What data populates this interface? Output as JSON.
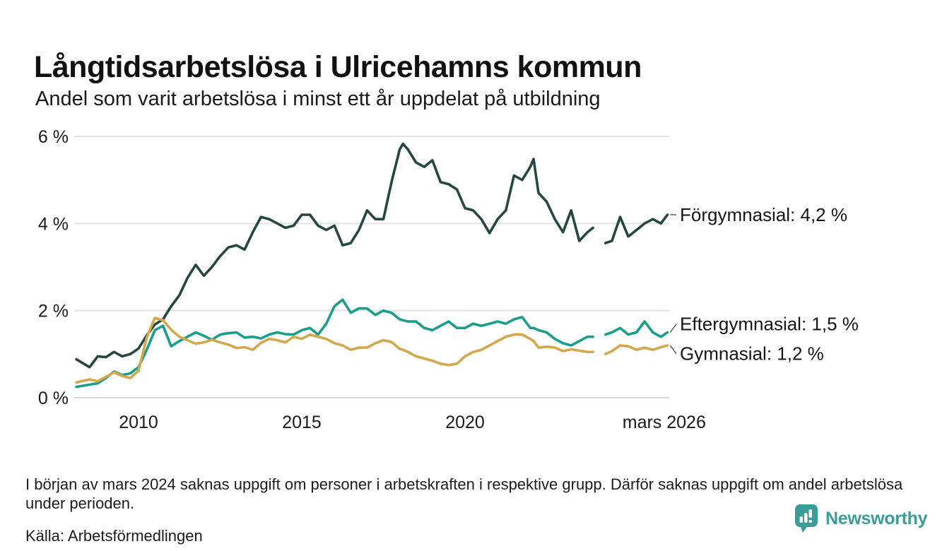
{
  "header": {
    "title": "Långtidsarbetslösa i Ulricehamns kommun",
    "subtitle": "Andel som varit arbetslösa i minst ett år uppdelat på utbildning"
  },
  "chart_data": {
    "type": "line",
    "title": "Långtidsarbetslösa i Ulricehamns kommun",
    "subtitle": "Andel som varit arbetslösa i minst ett år uppdelat på utbildning",
    "unit": "%",
    "xlim": [
      2008,
      2026.3
    ],
    "ylim": [
      0,
      6
    ],
    "grid": "horizontal",
    "legend_position": "labels-at-line-end",
    "gap_note": "Data saknas i början av 2024 (kring mars 2024), visas som avbrott i linjerna",
    "yticks": [
      {
        "value": 0,
        "label": "0 %"
      },
      {
        "value": 2,
        "label": "2 %"
      },
      {
        "value": 4,
        "label": "4 %"
      },
      {
        "value": 6,
        "label": "6 %"
      }
    ],
    "xticks": [
      {
        "value": 2010,
        "label": "2010"
      },
      {
        "value": 2015,
        "label": "2015"
      },
      {
        "value": 2020,
        "label": "2020"
      },
      {
        "value": 2026.1,
        "label": "mars 2026"
      }
    ],
    "x": [
      2008.1,
      2008.5,
      2008.75,
      2009,
      2009.25,
      2009.5,
      2009.75,
      2010,
      2010.25,
      2010.5,
      2010.75,
      2011,
      2011.25,
      2011.5,
      2011.75,
      2012,
      2012.25,
      2012.5,
      2012.75,
      2013,
      2013.25,
      2013.5,
      2013.75,
      2014,
      2014.25,
      2014.5,
      2014.75,
      2015,
      2015.25,
      2015.5,
      2015.75,
      2016,
      2016.25,
      2016.5,
      2016.75,
      2017,
      2017.25,
      2017.5,
      2017.75,
      2018,
      2018.1,
      2018.25,
      2018.5,
      2018.75,
      2019,
      2019.25,
      2019.5,
      2019.75,
      2020,
      2020.25,
      2020.5,
      2020.75,
      2021,
      2021.25,
      2021.5,
      2021.75,
      2022,
      2022.1,
      2022.25,
      2022.5,
      2022.75,
      2023,
      2023.25,
      2023.5,
      2023.75,
      2023.92,
      2024.1,
      2024.3,
      2024.5,
      2024.75,
      2025,
      2025.25,
      2025.5,
      2025.75,
      2026,
      2026.2
    ],
    "series": [
      {
        "name": "Förgymnasial",
        "label": "Förgymnasial: 4,2 %",
        "end_value": 4.2,
        "color": "#254741",
        "values": [
          0.88,
          0.7,
          0.95,
          0.93,
          1.05,
          0.95,
          1.0,
          1.13,
          1.43,
          1.68,
          1.8,
          2.1,
          2.35,
          2.75,
          3.05,
          2.8,
          3.0,
          3.25,
          3.45,
          3.5,
          3.4,
          3.8,
          4.15,
          4.1,
          4.0,
          3.9,
          3.95,
          4.2,
          4.2,
          3.95,
          3.85,
          3.95,
          3.5,
          3.55,
          3.85,
          4.3,
          4.1,
          4.1,
          4.95,
          5.7,
          5.83,
          5.7,
          5.4,
          5.3,
          5.45,
          4.95,
          4.9,
          4.78,
          4.35,
          4.3,
          4.1,
          3.78,
          4.1,
          4.3,
          5.1,
          5.0,
          5.3,
          5.48,
          4.7,
          4.5,
          4.1,
          3.8,
          4.3,
          3.6,
          3.8,
          3.9,
          null,
          3.55,
          3.6,
          4.15,
          3.7,
          3.85,
          4.0,
          4.1,
          4.0,
          4.2
        ]
      },
      {
        "name": "Eftergymnasial",
        "label": "Eftergymnasial: 1,5 %",
        "end_value": 1.5,
        "color": "#1a9e8b",
        "values": [
          0.25,
          0.3,
          0.33,
          0.45,
          0.6,
          0.52,
          0.56,
          0.7,
          1.1,
          1.55,
          1.65,
          1.18,
          1.3,
          1.4,
          1.5,
          1.42,
          1.33,
          1.45,
          1.48,
          1.5,
          1.38,
          1.4,
          1.36,
          1.45,
          1.5,
          1.46,
          1.45,
          1.55,
          1.6,
          1.45,
          1.7,
          2.1,
          2.25,
          1.95,
          2.05,
          2.05,
          1.9,
          2.0,
          1.95,
          1.8,
          1.78,
          1.75,
          1.75,
          1.6,
          1.55,
          1.65,
          1.75,
          1.6,
          1.6,
          1.7,
          1.65,
          1.7,
          1.75,
          1.7,
          1.8,
          1.85,
          1.6,
          1.6,
          1.55,
          1.5,
          1.35,
          1.25,
          1.2,
          1.3,
          1.4,
          1.4,
          null,
          1.45,
          1.5,
          1.6,
          1.45,
          1.5,
          1.75,
          1.5,
          1.4,
          1.5
        ]
      },
      {
        "name": "Gymnasial",
        "label": "Gymnasial: 1,2 %",
        "end_value": 1.2,
        "color": "#d5a74c",
        "values": [
          0.35,
          0.42,
          0.38,
          0.48,
          0.58,
          0.5,
          0.45,
          0.62,
          1.38,
          1.83,
          1.78,
          1.56,
          1.4,
          1.32,
          1.24,
          1.27,
          1.33,
          1.27,
          1.22,
          1.14,
          1.16,
          1.1,
          1.26,
          1.35,
          1.32,
          1.27,
          1.4,
          1.35,
          1.45,
          1.4,
          1.35,
          1.25,
          1.2,
          1.1,
          1.15,
          1.15,
          1.25,
          1.32,
          1.28,
          1.12,
          1.1,
          1.05,
          0.95,
          0.9,
          0.85,
          0.78,
          0.75,
          0.78,
          0.95,
          1.05,
          1.1,
          1.2,
          1.3,
          1.4,
          1.45,
          1.45,
          1.35,
          1.3,
          1.15,
          1.17,
          1.15,
          1.07,
          1.11,
          1.08,
          1.05,
          1.05,
          null,
          1.0,
          1.07,
          1.2,
          1.18,
          1.1,
          1.15,
          1.1,
          1.16,
          1.2
        ]
      }
    ]
  },
  "footer": {
    "note": "I början av mars 2024 saknas uppgift om personer i arbetskraften i respektive grupp. Därför saknas uppgift om andel arbetslösa under perioden.",
    "source": "Källa: Arbetsförmedlingen",
    "logo_text": "Newsworthy"
  },
  "colors": {
    "forgymnasial": "#254741",
    "eftergymnasial": "#1a9e8b",
    "gymnasial": "#d5a74c",
    "gridline": "#e2e2e2",
    "zero_gridline": "#d8d8d8",
    "text": "#1a1a1a",
    "logo_teal": "#3b9d97"
  }
}
